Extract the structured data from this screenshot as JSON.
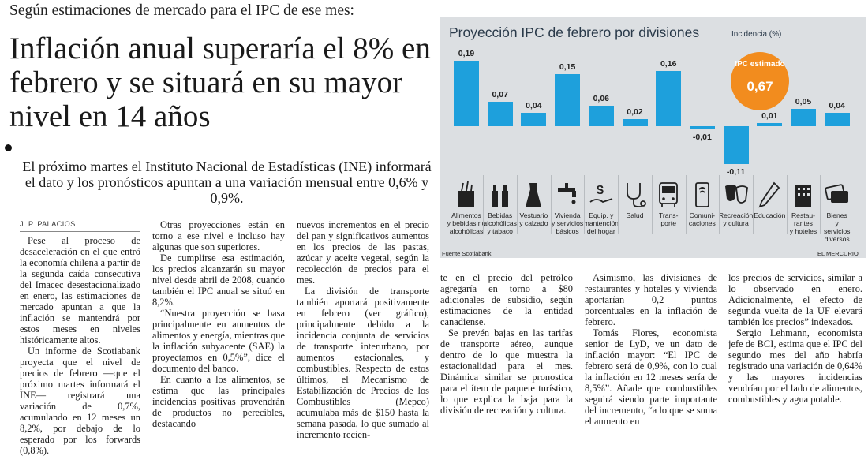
{
  "article": {
    "kicker": "Según estimaciones de mercado para el IPC de ese mes:",
    "headline": "Inflación anual superaría el 8% en febrero y se situará en su mayor nivel en 14 años",
    "deck": "El próximo martes el Instituto Nacional de Estadísticas (INE) informará el dato y los pronósticos apuntan a una variación mensual entre 0,6% y 0,9%.",
    "byline": "J. P. PALACIOS",
    "col1": [
      "Pese al proceso de desaceleración en el que entró la economía chilena a partir de la segunda caída consecutiva del Imacec desestacionalizado en enero, las estimaciones de mercado apuntan a que la inflación se mantendrá por estos meses en niveles históricamente altos.",
      "Un informe de Scotiabank proyecta que el nivel de precios de febrero —que el próximo martes informará el INE— registrará una variación de 0,7%, acumulando en 12 meses un 8,2%, por debajo de lo esperado por los forwards (0,8%)."
    ],
    "col2": [
      "Otras proyecciones están en torno a ese nivel e incluso hay algunas que son superiores.",
      "De cumplirse esa estimación, los precios alcanzarán su mayor nivel desde abril de 2008, cuando también el IPC anual se situó en 8,2%.",
      "“Nuestra proyección se basa principalmente en aumentos de alimentos y energía, mientras que la inflación subyacente (SAE) la proyectamos en 0,5%”, dice el documento del banco.",
      "En cuanto a los alimentos, se estima que las principales incidencias positivas provendrán de productos no perecibles, destacando"
    ],
    "col3": [
      "nuevos incrementos en el precio del pan y significativos aumentos en los precios de las pastas, azúcar y aceite vegetal, según la recolección de precios para el mes.",
      "La división de transporte también aportará positivamente en febrero (ver gráfico), principalmente debido a la incidencia conjunta de servicios de transporte interurbano, por aumentos estacionales, y combustibles. Respecto de estos últimos, el Mecanismo de Estabilización de Precios de los Combustibles (Mepco) acumulaba más de $150 hasta la semana pasada, lo que sumado al incremento recien-"
    ],
    "col4": [
      "te en el precio del petróleo agregaría en torno a $80 adicionales de subsidio, según estimaciones de la entidad canadiense.",
      "Se prevén bajas en las tarifas de transporte aéreo, aunque dentro de lo que muestra la estacionalidad para el mes. Dinámica similar se pronostica para el ítem de paquete turístico, lo que explica la baja para la división de recreación y cultura."
    ],
    "col5": [
      "Asimismo, las divisiones de restaurantes y hoteles y vivienda aportarían 0,2 puntos porcentuales en la inflación de febrero.",
      "Tomás Flores, economista senior de LyD, ve un dato de inflación mayor: “El IPC de febrero será de 0,9%, con lo cual la inflación en 12 meses sería de 8,5%”. Añade que combustibles seguirá siendo parte importante del incremento, “a lo que se suma el aumento en"
    ],
    "col6": [
      "los precios de servicios, similar a lo observado en enero. Adicionalmente, el efecto de segunda vuelta de la UF elevará también los precios” indexados.",
      "Sergio Lehmann, economista jefe de BCI, estima que el IPC del segundo mes del año habría registrado una variación de 0,64% y las mayores incidencias vendrían por el lado de alimentos, combustibles y agua potable."
    ]
  },
  "chart_data": {
    "type": "bar",
    "title": "Proyección IPC de febrero por divisiones",
    "ylabel": "Incidencia (%)",
    "categories": [
      "Alimentos y bebidas no alcohólicas",
      "Bebidas alcohólicas y tabaco",
      "Vestuario y calzado",
      "Vivienda y servicios básicos",
      "Equip. y mantención del hogar",
      "Salud",
      "Transporte",
      "Comunicaciones",
      "Recreación y cultura",
      "Educación",
      "Restaurantes y hoteles",
      "Bienes y servicios diversos"
    ],
    "cat_lines": [
      [
        "Alimentos",
        "y bebidas no",
        "alcohólicas"
      ],
      [
        "Bebidas",
        "alcohólicas",
        "y tabaco"
      ],
      [
        "Vestuario",
        "y calzado"
      ],
      [
        "Vivienda",
        "y servicios",
        "básicos"
      ],
      [
        "Equip. y",
        "mantención",
        "del hogar"
      ],
      [
        "Salud"
      ],
      [
        "Trans-",
        "porte"
      ],
      [
        "Comuni-",
        "caciones"
      ],
      [
        "Recreación",
        "y cultura"
      ],
      [
        "Educación"
      ],
      [
        "Restau-",
        "rantes",
        "y hoteles"
      ],
      [
        "Bienes",
        "y",
        "servicios",
        "diversos"
      ]
    ],
    "icons": [
      "grocery-bag-icon",
      "bottles-icon",
      "dress-icon",
      "faucet-icon",
      "hand-money-icon",
      "stethoscope-icon",
      "bus-icon",
      "phone-icon",
      "theater-masks-icon",
      "pencil-icon",
      "hotel-icon",
      "credit-cards-icon"
    ],
    "values": [
      0.19,
      0.07,
      0.04,
      0.15,
      0.06,
      0.02,
      0.16,
      -0.01,
      -0.11,
      0.01,
      0.05,
      0.04
    ],
    "labels": [
      "0,19",
      "0,07",
      "0,04",
      "0,15",
      "0,06",
      "0,02",
      "0,16",
      "-0,01",
      "-0,11",
      "0,01",
      "0,05",
      "0,04"
    ],
    "ylim": [
      -0.11,
      0.19
    ],
    "annotation": {
      "label": "IPC estimado",
      "value": "0,67"
    },
    "source": "Fuente Scotiabank",
    "publisher": "EL MERCURIO",
    "bar_color": "#1ea0dc",
    "badge_color": "#f28c1e"
  }
}
